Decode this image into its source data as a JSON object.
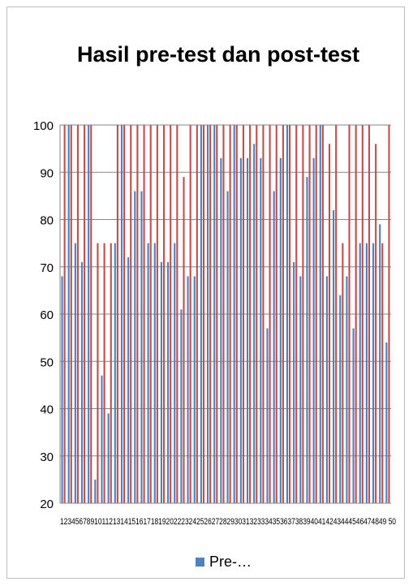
{
  "chart_data": {
    "type": "bar",
    "title": "Hasil pre-test dan post-test",
    "ylim": [
      20,
      100
    ],
    "yticks": [
      20,
      30,
      40,
      50,
      60,
      70,
      80,
      90,
      100
    ],
    "grid": true,
    "legend_position": "bottom",
    "categories": [
      "1",
      "2",
      "3",
      "4",
      "5",
      "6",
      "7",
      "8",
      "9",
      "10",
      "11",
      "12",
      "13",
      "14",
      "15",
      "16",
      "17",
      "18",
      "19",
      "20",
      "21",
      "22",
      "23",
      "24",
      "25",
      "26",
      "27",
      "28",
      "29",
      "30",
      "31",
      "32",
      "33",
      "34",
      "35",
      "36",
      "37",
      "38",
      "39",
      "40",
      "41",
      "42",
      "43",
      "44",
      "45",
      "46",
      "47",
      "48",
      "49",
      "50"
    ],
    "xtick_label_text": "12345678910112131415161718192022232425262728293031323334353637383940414243444546474849 50",
    "series": [
      {
        "name": "Pre-…",
        "color": "#4f81bd",
        "values": [
          68,
          100,
          75,
          71,
          100,
          25,
          47,
          39,
          75,
          100,
          72,
          86,
          86,
          75,
          75,
          71,
          71,
          75,
          61,
          68,
          68,
          100,
          100,
          100,
          93,
          86,
          100,
          93,
          93,
          96,
          93,
          57,
          86,
          93,
          100,
          71,
          68,
          89,
          93,
          100,
          68,
          82,
          64,
          68,
          57,
          75,
          75,
          75,
          79,
          54
        ]
      },
      {
        "color": "#c0504d",
        "values": [
          100,
          100,
          100,
          100,
          100,
          75,
          75,
          75,
          100,
          100,
          100,
          100,
          100,
          100,
          100,
          100,
          100,
          100,
          89,
          100,
          100,
          100,
          100,
          100,
          100,
          100,
          100,
          100,
          100,
          100,
          100,
          100,
          100,
          100,
          100,
          100,
          100,
          100,
          100,
          100,
          96,
          100,
          75,
          100,
          100,
          100,
          100,
          96,
          75,
          100
        ]
      }
    ]
  }
}
